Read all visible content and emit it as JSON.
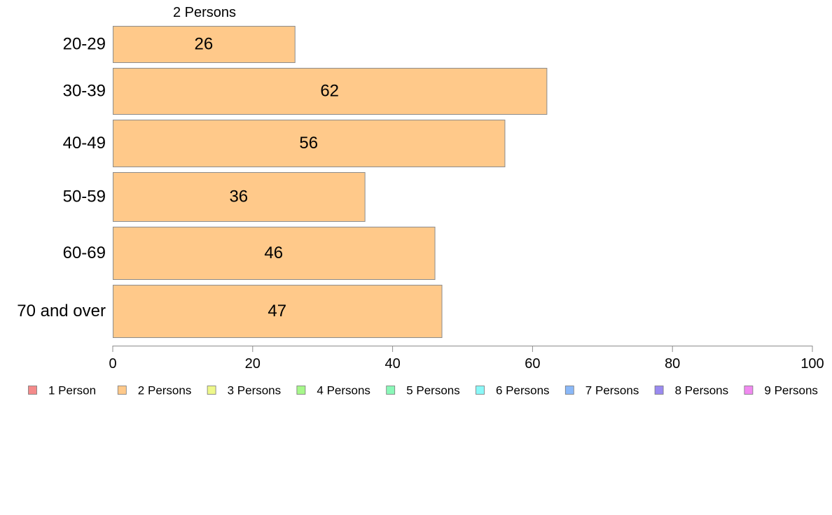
{
  "chart_data": {
    "type": "bar",
    "orientation": "horizontal",
    "categories": [
      "20-29",
      "30-39",
      "40-49",
      "50-59",
      "60-69",
      "70 and over"
    ],
    "series": [
      {
        "name": "2 Persons",
        "values": [
          26,
          62,
          56,
          36,
          46,
          47
        ],
        "color": "#ffc98a"
      }
    ],
    "series_label": "2 Persons",
    "xlim": [
      0,
      100
    ],
    "x_ticks": [
      "0",
      "20",
      "40",
      "60",
      "80",
      "100"
    ],
    "grid": false,
    "legend_placement": "bottom",
    "legend": [
      {
        "label": "1 Person",
        "color": "#f48a8a"
      },
      {
        "label": "2 Persons",
        "color": "#ffc98a"
      },
      {
        "label": "3 Persons",
        "color": "#eef88a"
      },
      {
        "label": "4 Persons",
        "color": "#a6f88a"
      },
      {
        "label": "5 Persons",
        "color": "#8af8b8"
      },
      {
        "label": "6 Persons",
        "color": "#8af8f8"
      },
      {
        "label": "7 Persons",
        "color": "#8ab8f8"
      },
      {
        "label": "8 Persons",
        "color": "#9a8af0"
      },
      {
        "label": "9 Persons",
        "color": "#f08af0"
      }
    ]
  }
}
